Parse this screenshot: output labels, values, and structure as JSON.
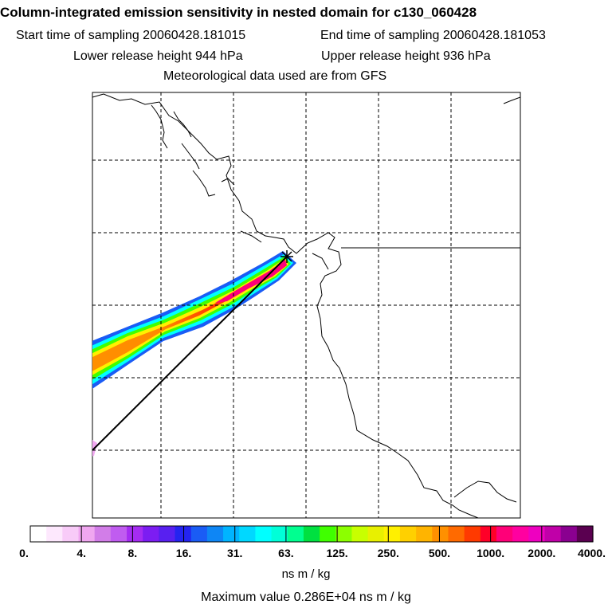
{
  "header": {
    "title": "Column-integrated emission sensitivity in nested domain for c130_060428",
    "start_label": "Start time of sampling 20060428.181015",
    "end_label": "End time of sampling 20060428.181053",
    "lower_label": "Lower release height  944 hPa",
    "upper_label": "Upper release height  936 hPa",
    "met_label": "Meteorological data used are from GFS"
  },
  "colorbar": {
    "tick_labels": [
      "0.",
      "4.",
      "8.",
      "16.",
      "31.",
      "63.",
      "125.",
      "250.",
      "500.",
      "1000.",
      "2000.",
      "4000."
    ],
    "colors": [
      "#ffffff",
      "#fde8fd",
      "#f8cbf8",
      "#f0a7f0",
      "#d27de8",
      "#c05cf0",
      "#a52cf2",
      "#7c1df2",
      "#5820f0",
      "#2424f0",
      "#1a5cf5",
      "#0e86f5",
      "#00b4ff",
      "#00d8ff",
      "#00ffff",
      "#00ffd8",
      "#00ff90",
      "#00e040",
      "#40ff00",
      "#8cff00",
      "#c8ff00",
      "#e8f000",
      "#fff000",
      "#ffd000",
      "#ffb400",
      "#ff9000",
      "#ff6a00",
      "#ff3a00",
      "#ff0028",
      "#ff0078",
      "#ff00a0",
      "#ee00c0",
      "#c000a8",
      "#8a0090",
      "#5a0050"
    ],
    "units": "ns m / kg",
    "max_label": "Maximum value  0.286E+04 ns m / kg"
  }
}
